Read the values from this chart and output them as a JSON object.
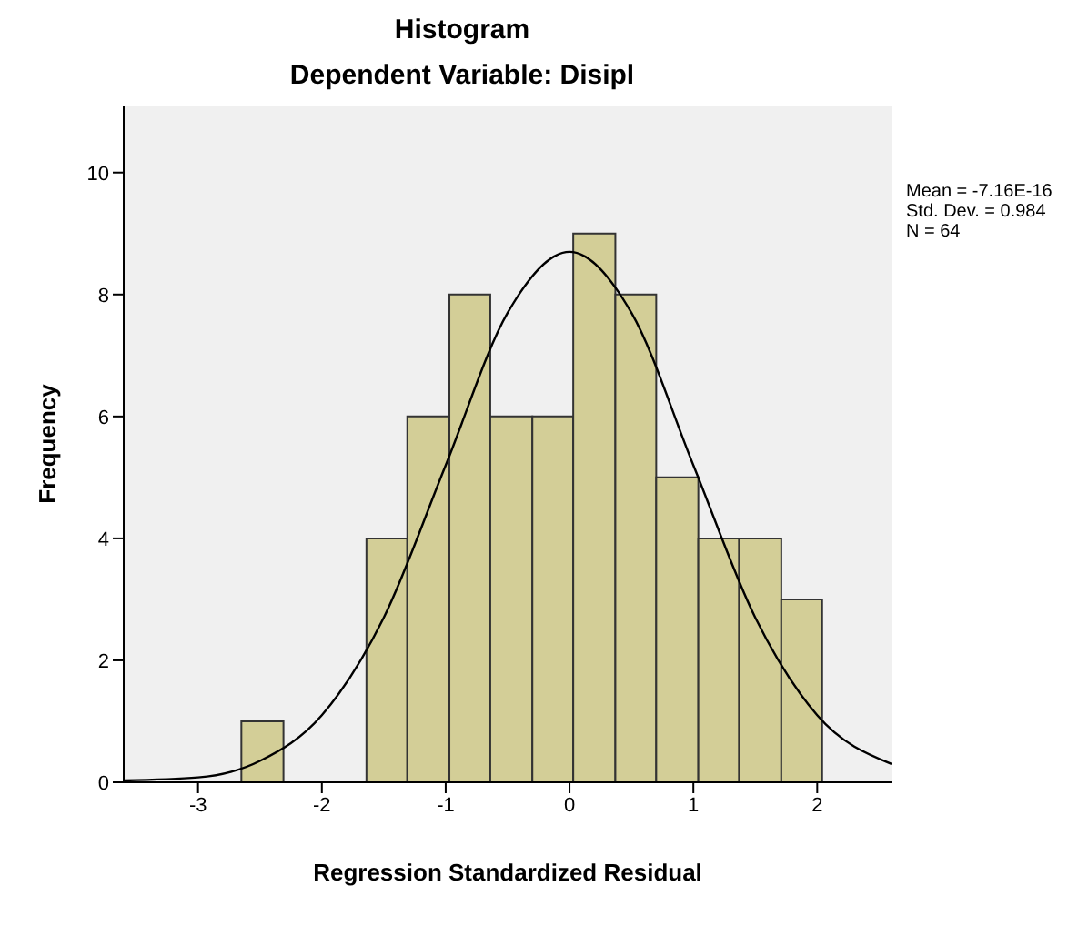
{
  "chart_data": {
    "type": "histogram",
    "title": "Histogram",
    "subtitle": "Dependent Variable: Disipl",
    "xlabel": "Regression Standardized Residual",
    "ylabel": "Frequency",
    "bins": [
      -2.65,
      -2.31,
      -1.64,
      -1.31,
      -0.97,
      -0.64,
      -0.3,
      0.03,
      0.37,
      0.7,
      1.04,
      1.37,
      1.71,
      2.04
    ],
    "values": [
      1,
      0,
      4,
      6,
      8,
      6,
      6,
      9,
      8,
      5,
      4,
      4,
      3
    ],
    "color": "#d3ce97",
    "series": [
      {
        "type": "line",
        "color": "#000000",
        "x": [
          -3.6,
          -3.0,
          -2.5,
          -2.0,
          -1.5,
          -1.0,
          -0.5,
          0.0,
          0.5,
          1.0,
          1.5,
          2.0,
          2.6
        ],
        "values": [
          0.03,
          0.08,
          0.35,
          1.1,
          2.7,
          5.2,
          7.7,
          8.7,
          7.7,
          5.2,
          2.7,
          1.1,
          0.3
        ]
      }
    ],
    "xlim": [
      -3.6,
      2.6
    ],
    "xticks": [
      -3,
      -2,
      -1,
      0,
      1,
      2
    ],
    "ylim": [
      0,
      11.1
    ],
    "yticks": [
      0,
      2,
      4,
      6,
      8,
      10
    ],
    "grid": false,
    "annotations": [
      "Mean = -7.16E-16",
      "Std. Dev. = 0.984",
      "N = 64"
    ]
  }
}
